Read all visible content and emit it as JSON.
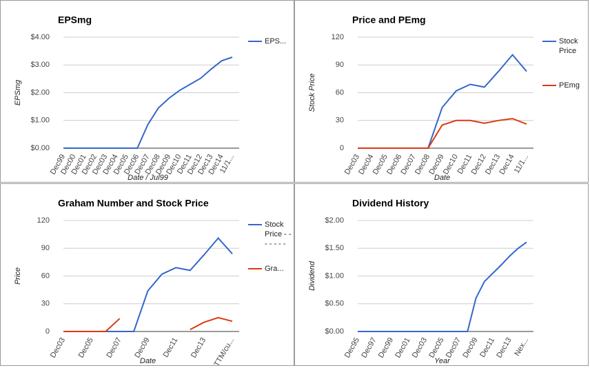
{
  "chart_data": [
    {
      "type": "line",
      "title": "EPSmg",
      "x_label": "Date / Jul99",
      "y_label": "EPSmg",
      "categories": [
        "Dec99",
        "Dec00",
        "Dec01",
        "Dec02",
        "Dec03",
        "Dec04",
        "Dec05",
        "Dec06",
        "Dec07",
        "Dec08",
        "Dec09",
        "Dec10",
        "Dec11",
        "Dec12",
        "Dec13",
        "Dec14",
        "11/1..."
      ],
      "series": [
        {
          "name": "EPS...",
          "color": "#3366cc",
          "values": [
            0,
            0,
            0,
            0,
            0,
            0,
            0,
            0,
            0.85,
            1.45,
            1.8,
            2.08,
            2.3,
            2.52,
            2.85,
            3.15,
            3.28
          ]
        }
      ],
      "ylim": [
        0,
        4
      ],
      "yticks": [
        {
          "value": 0,
          "label": "$0.00"
        },
        {
          "value": 1,
          "label": "$1.00"
        },
        {
          "value": 2,
          "label": "$2.00"
        },
        {
          "value": 3,
          "label": "$3.00"
        },
        {
          "value": 4,
          "label": "$4.00"
        }
      ],
      "grid": true,
      "legend": "right"
    },
    {
      "type": "line",
      "title": "Price and PEmg",
      "x_label": "Date",
      "y_label": "Stock Price",
      "categories": [
        "Dec03",
        "Dec04",
        "Dec05",
        "Dec06",
        "Dec07",
        "Dec08",
        "Dec09",
        "Dec10",
        "Dec11",
        "Dec12",
        "Dec13",
        "Dec14",
        "11/1..."
      ],
      "series": [
        {
          "name": "Stock Price",
          "color": "#3366cc",
          "values": [
            0,
            0,
            0,
            0,
            0,
            0,
            44,
            62,
            69,
            66,
            83,
            101,
            83
          ]
        },
        {
          "name": "PEmg",
          "color": "#dc3912",
          "values": [
            0,
            0,
            0,
            0,
            0,
            0,
            25,
            30,
            30,
            27,
            30,
            32,
            26
          ]
        }
      ],
      "ylim": [
        0,
        120
      ],
      "yticks": [
        0,
        30,
        60,
        90,
        120
      ],
      "grid": true,
      "legend": "right"
    },
    {
      "type": "line",
      "title": "Graham Number and Stock Price",
      "x_label": "Date",
      "y_label": "Price",
      "categories": [
        "Dec03",
        null,
        "Dec05",
        null,
        "Dec07",
        null,
        "Dec09",
        null,
        "Dec11",
        null,
        "Dec13",
        null,
        "TTM/cu..."
      ],
      "series": [
        {
          "name": "Stock Price - - - - - - -",
          "color": "#3366cc",
          "values": [
            0,
            0,
            0,
            0,
            0,
            0,
            44,
            62,
            69,
            66,
            83,
            101,
            84
          ]
        },
        {
          "name": "Gra...",
          "color": "#dc3912",
          "values": [
            0,
            0,
            0,
            0,
            14,
            null,
            null,
            null,
            null,
            2,
            10,
            15,
            11
          ]
        }
      ],
      "ylim": [
        0,
        120
      ],
      "yticks": [
        0,
        30,
        60,
        90,
        120
      ],
      "grid": true,
      "legend": "right"
    },
    {
      "type": "line",
      "title": "Dividend History",
      "x_label": "Year",
      "y_label": "Dividend",
      "categories": [
        "Dec95",
        null,
        "Dec97",
        null,
        "Dec99",
        null,
        "Dec01",
        null,
        "Dec03",
        null,
        "Dec05",
        null,
        "Dec07",
        null,
        "Dec09",
        null,
        "Dec11",
        null,
        "Dec13",
        null,
        "Nex..."
      ],
      "series": [
        {
          "color": "#3366cc",
          "values": [
            0,
            0,
            0,
            0,
            0,
            0,
            0,
            0,
            0,
            0,
            0,
            0,
            0,
            0,
            0.6,
            0.9,
            1.05,
            1.2,
            1.36,
            1.5,
            1.61
          ]
        }
      ],
      "ylim": [
        0,
        2
      ],
      "yticks": [
        {
          "value": 0,
          "label": "$0.00"
        },
        {
          "value": 0.5,
          "label": "$0.50"
        },
        {
          "value": 1,
          "label": "$1.00"
        },
        {
          "value": 1.5,
          "label": "$1.50"
        },
        {
          "value": 2,
          "label": "$2.00"
        }
      ],
      "grid": true
    }
  ]
}
